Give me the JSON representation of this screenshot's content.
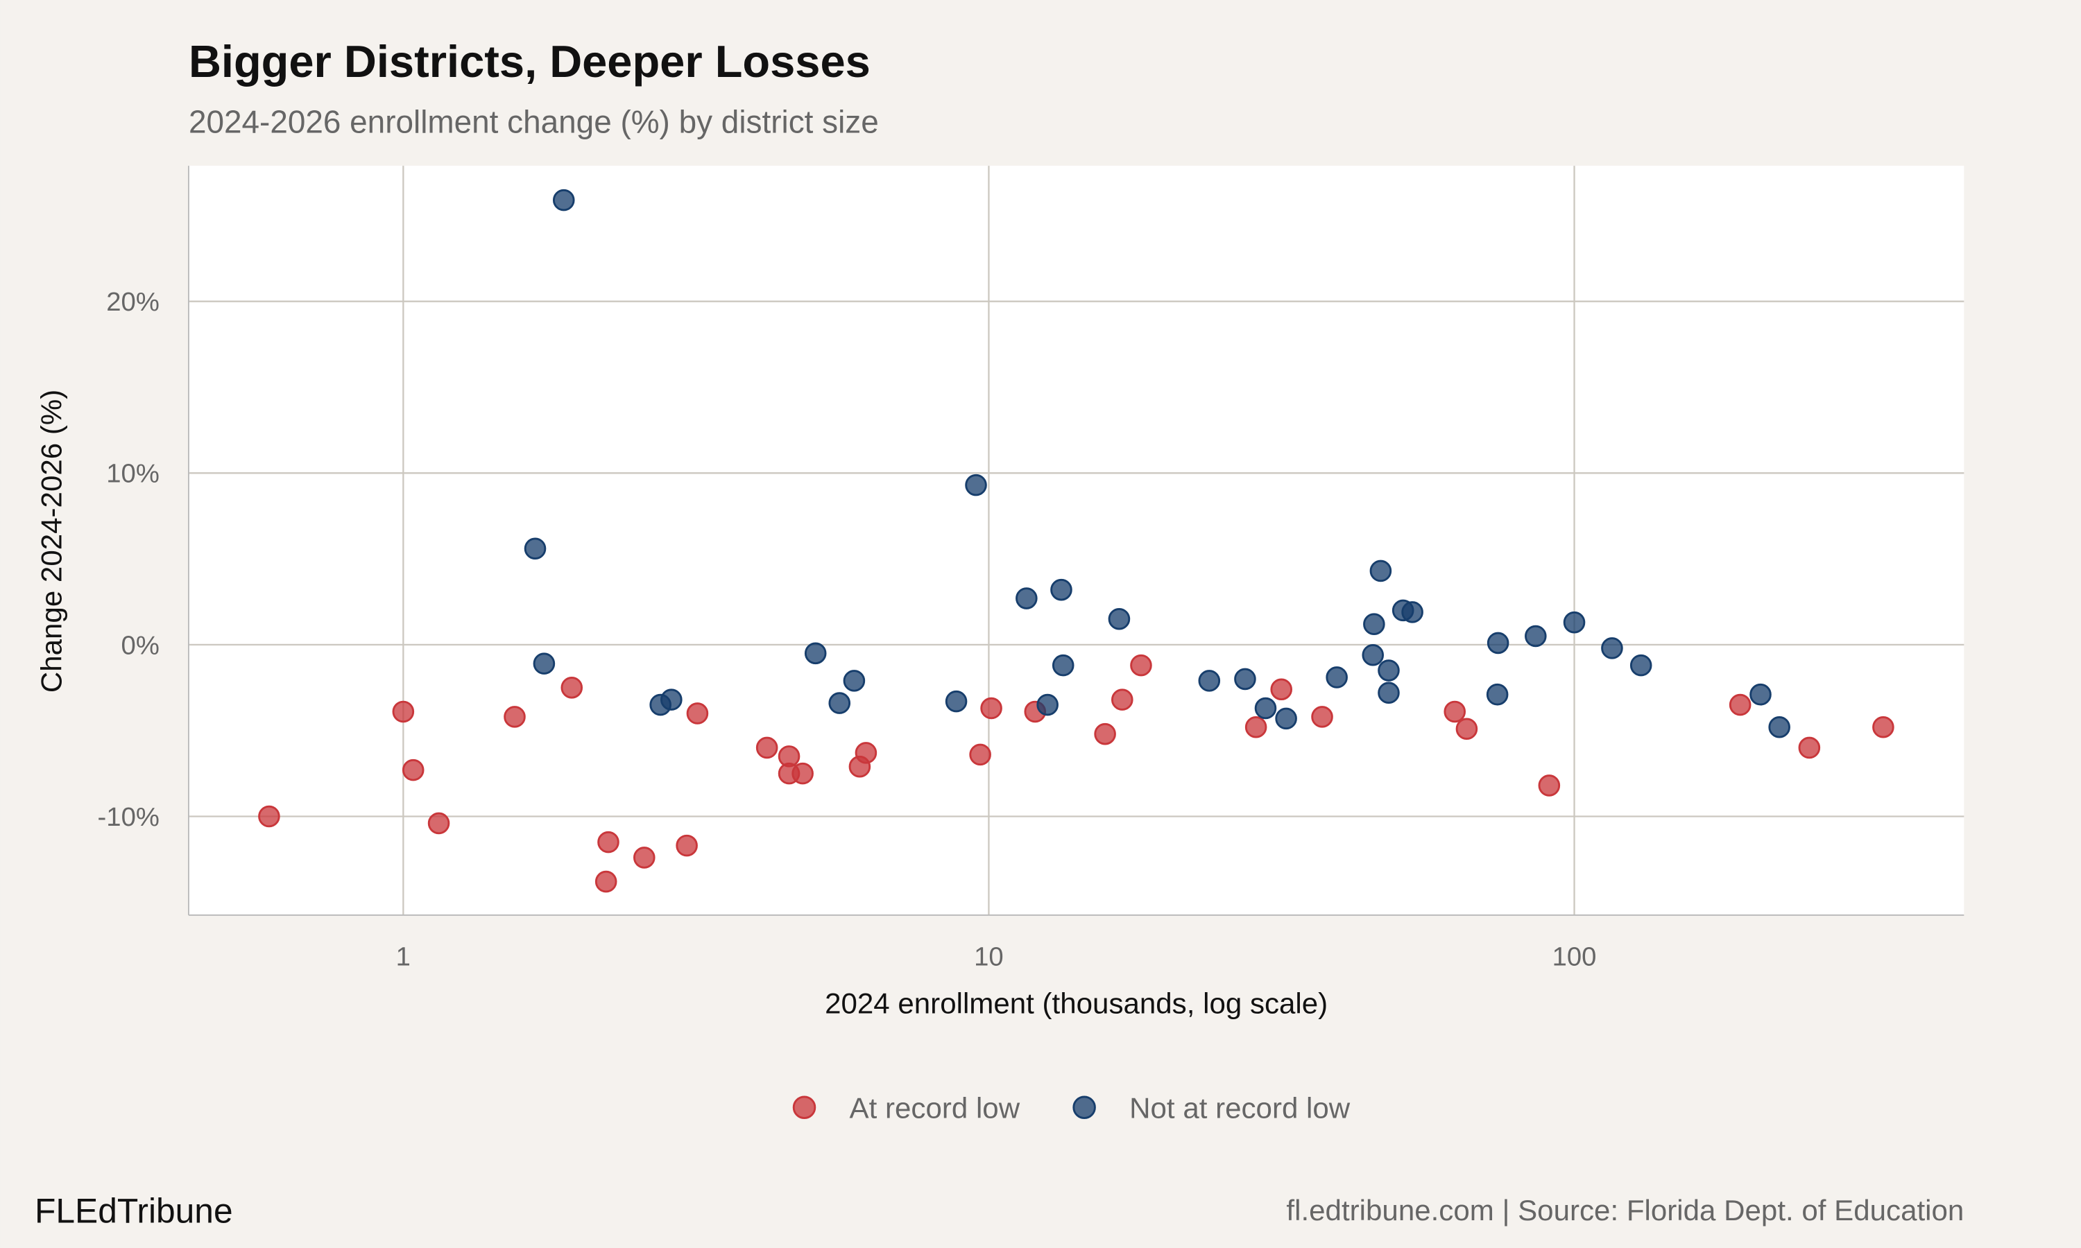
{
  "chart_data": {
    "type": "scatter",
    "title": "Bigger Districts, Deeper Losses",
    "subtitle": "2024-2026 enrollment change (%) by district size",
    "xlabel": "2024 enrollment (thousands, log scale)",
    "ylabel": "Change 2024-2026 (%)",
    "x_scale": "log",
    "xlim": [
      0.43,
      463
    ],
    "ylim": [
      -15.75,
      27.9
    ],
    "x_ticks": [
      1,
      10,
      100
    ],
    "x_tick_labels": [
      "1",
      "10",
      "100"
    ],
    "y_ticks": [
      -10,
      0,
      10,
      20
    ],
    "y_tick_labels": [
      "-10%",
      "0%",
      "10%",
      "20%"
    ],
    "grid": true,
    "legend_position": "bottom",
    "series": [
      {
        "name": "At record low",
        "color": "#c9373b",
        "points": [
          [
            0.59,
            -10.0
          ],
          [
            1.0,
            -3.9
          ],
          [
            1.04,
            -7.3
          ],
          [
            1.15,
            -10.4
          ],
          [
            1.55,
            -4.2
          ],
          [
            1.94,
            -2.5
          ],
          [
            2.22,
            -13.8
          ],
          [
            2.24,
            -11.5
          ],
          [
            2.58,
            -12.4
          ],
          [
            3.05,
            -11.7
          ],
          [
            3.18,
            -4.0
          ],
          [
            4.18,
            -6.0
          ],
          [
            4.56,
            -6.5
          ],
          [
            4.56,
            -7.5
          ],
          [
            4.81,
            -7.5
          ],
          [
            6.02,
            -7.1
          ],
          [
            6.17,
            -6.3
          ],
          [
            9.67,
            -6.4
          ],
          [
            10.1,
            -3.7
          ],
          [
            12.0,
            -3.9
          ],
          [
            15.8,
            -5.2
          ],
          [
            16.9,
            -3.2
          ],
          [
            18.2,
            -1.2
          ],
          [
            28.6,
            -4.8
          ],
          [
            31.6,
            -2.6
          ],
          [
            37.1,
            -4.2
          ],
          [
            62.5,
            -3.9
          ],
          [
            65.5,
            -4.9
          ],
          [
            90.6,
            -8.2
          ],
          [
            192,
            -3.5
          ],
          [
            252,
            -6.0
          ],
          [
            337,
            -4.8
          ]
        ]
      },
      {
        "name": "Not at record low",
        "color": "#173e6c",
        "points": [
          [
            1.88,
            25.9
          ],
          [
            1.68,
            5.6
          ],
          [
            1.74,
            -1.1
          ],
          [
            2.75,
            -3.5
          ],
          [
            2.87,
            -3.2
          ],
          [
            5.06,
            -0.5
          ],
          [
            5.56,
            -3.4
          ],
          [
            5.89,
            -2.1
          ],
          [
            8.8,
            -3.3
          ],
          [
            9.51,
            9.3
          ],
          [
            11.6,
            2.7
          ],
          [
            12.6,
            -3.5
          ],
          [
            13.3,
            3.2
          ],
          [
            13.4,
            -1.2
          ],
          [
            16.7,
            1.5
          ],
          [
            23.8,
            -2.1
          ],
          [
            27.4,
            -2.0
          ],
          [
            29.7,
            -3.7
          ],
          [
            32.2,
            -4.3
          ],
          [
            39.3,
            -1.9
          ],
          [
            45.3,
            -0.6
          ],
          [
            45.5,
            1.2
          ],
          [
            46.7,
            4.3
          ],
          [
            48.2,
            -1.5
          ],
          [
            48.2,
            -2.8
          ],
          [
            51.0,
            2.0
          ],
          [
            52.9,
            1.9
          ],
          [
            73.9,
            -2.9
          ],
          [
            74.1,
            0.1
          ],
          [
            85.9,
            0.5
          ],
          [
            100,
            1.3
          ],
          [
            116,
            -0.2
          ],
          [
            130,
            -1.2
          ],
          [
            208,
            -2.9
          ],
          [
            224,
            -4.8
          ]
        ]
      }
    ]
  },
  "footer": {
    "brand": "FLEdTribune",
    "source": "fl.edtribune.com | Source: Florida Dept. of Education"
  }
}
